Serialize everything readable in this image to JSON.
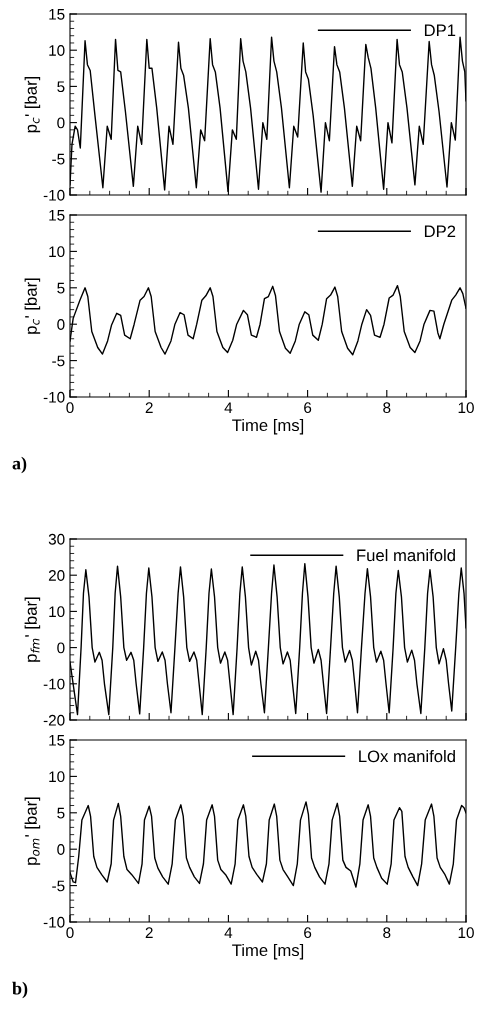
{
  "chart_data": [
    {
      "type": "line",
      "ylabel": "p$_{c}$' [bar]",
      "xlim": [
        0,
        10
      ],
      "xticks": [
        0,
        2,
        4,
        6,
        8,
        10
      ],
      "ylim": [
        -10,
        15
      ],
      "yticks": [
        -10,
        -5,
        0,
        5,
        10,
        15
      ],
      "tick_labels": "y",
      "legend": "top right",
      "grid": false,
      "series": [
        {
          "name": "DP1",
          "color": "#000000",
          "x": [
            0,
            0.05,
            0.13,
            0.19,
            0.26,
            0.38,
            0.44,
            0.51,
            0.63,
            0.83,
            0.94,
            1.04,
            1.15,
            1.21,
            1.28,
            1.4,
            1.6,
            1.71,
            1.81,
            1.94,
            2.0,
            2.07,
            2.19,
            2.39,
            2.5,
            2.6,
            2.74,
            2.8,
            2.87,
            2.99,
            3.19,
            3.3,
            3.4,
            3.54,
            3.6,
            3.67,
            3.79,
            3.99,
            4.1,
            4.2,
            4.31,
            4.37,
            4.44,
            4.56,
            4.76,
            4.87,
            4.97,
            5.09,
            5.15,
            5.22,
            5.34,
            5.54,
            5.65,
            5.75,
            5.89,
            5.95,
            6.02,
            6.14,
            6.34,
            6.45,
            6.55,
            6.68,
            6.74,
            6.81,
            6.93,
            7.13,
            7.24,
            7.34,
            7.47,
            7.53,
            7.6,
            7.72,
            7.92,
            8.03,
            8.13,
            8.26,
            8.32,
            8.39,
            8.51,
            8.71,
            8.82,
            8.92,
            9.07,
            9.13,
            9.2,
            9.32,
            9.52,
            9.63,
            9.73,
            9.85,
            9.91,
            9.97,
            10
          ],
          "values": [
            -8.6,
            -3,
            -0.5,
            -1,
            -3.5,
            11.3,
            8,
            7.2,
            1,
            -9,
            -0.5,
            -2.3,
            11.5,
            7.2,
            7,
            1.5,
            -8.8,
            -0.5,
            -3,
            11.5,
            7.5,
            7.5,
            2,
            -9.3,
            -0.5,
            -3,
            11.1,
            7.5,
            6.5,
            2,
            -9,
            -1,
            -2.5,
            11.6,
            8,
            7,
            2,
            -9.5,
            -1,
            -2.3,
            11.6,
            8.5,
            7,
            2,
            -9.2,
            0,
            -2.3,
            11.8,
            8.5,
            7,
            2,
            -9,
            -0.5,
            -2,
            11,
            7,
            6,
            1,
            -9.6,
            0,
            -2.5,
            10.5,
            8,
            7,
            2,
            -8.8,
            -0.5,
            -2.5,
            10.8,
            9,
            7.5,
            2,
            -9.2,
            0,
            -2.8,
            11.5,
            8,
            7,
            2,
            -8.6,
            -0.5,
            -3,
            11.2,
            8,
            6.5,
            1.5,
            -8.9,
            0,
            -2.4,
            11.8,
            8.5,
            7,
            3
          ]
        }
      ]
    },
    {
      "type": "line",
      "xlabel": "Time [ms]",
      "ylabel": "p$_{c}$' [bar]",
      "xlim": [
        0,
        10
      ],
      "xticks": [
        0,
        2,
        4,
        6,
        8,
        10
      ],
      "ylim": [
        -10,
        15
      ],
      "yticks": [
        -10,
        -5,
        0,
        5,
        10,
        15
      ],
      "legend": "top right",
      "grid": false,
      "annotations": [
        "a)"
      ],
      "series": [
        {
          "name": "DP2",
          "color": "#000000",
          "x": [
            0,
            0.08,
            0.25,
            0.38,
            0.45,
            0.55,
            0.7,
            0.82,
            0.95,
            1.05,
            1.18,
            1.28,
            1.38,
            1.52,
            1.62,
            1.77,
            1.87,
            1.98,
            2.05,
            2.15,
            2.3,
            2.4,
            2.55,
            2.65,
            2.78,
            2.88,
            2.98,
            3.11,
            3.2,
            3.33,
            3.43,
            3.54,
            3.61,
            3.71,
            3.86,
            3.98,
            4.11,
            4.21,
            4.38,
            4.48,
            4.58,
            4.71,
            4.8,
            4.91,
            5.01,
            5.12,
            5.19,
            5.29,
            5.44,
            5.56,
            5.69,
            5.79,
            5.93,
            6.03,
            6.13,
            6.27,
            6.37,
            6.48,
            6.58,
            6.69,
            6.76,
            6.86,
            7.01,
            7.14,
            7.27,
            7.37,
            7.49,
            7.59,
            7.69,
            7.83,
            7.93,
            8.06,
            8.16,
            8.27,
            8.34,
            8.44,
            8.59,
            8.71,
            8.84,
            8.94,
            9.09,
            9.19,
            9.29,
            9.34,
            9.44,
            9.64,
            9.74,
            9.85,
            9.92,
            10
          ],
          "values": [
            -2.3,
            0.8,
            3.3,
            5,
            3.8,
            -1,
            -3.2,
            -4.1,
            -2.3,
            -0.1,
            1.5,
            1.2,
            -1.5,
            -2,
            0,
            3.3,
            3.8,
            5,
            3.8,
            -1,
            -3.2,
            -4.1,
            -2.3,
            0,
            1.6,
            1.3,
            -1.5,
            -2,
            0,
            3.3,
            3.9,
            5,
            3.8,
            -1,
            -3.2,
            -3.9,
            -2.2,
            0,
            1.9,
            1.3,
            -1.5,
            -1.8,
            0,
            3.5,
            3.8,
            5.2,
            3.9,
            -1,
            -3.3,
            -4,
            -2.3,
            0,
            1.7,
            1.3,
            -1.5,
            -2.2,
            0,
            3.5,
            4,
            5.1,
            3.8,
            -1,
            -3.3,
            -4.2,
            -2.3,
            0,
            2,
            1.2,
            -1.5,
            -1.8,
            0,
            3.6,
            4,
            5.3,
            3.8,
            -1,
            -3.2,
            -3.9,
            -2.3,
            0,
            1.9,
            1.8,
            -1.2,
            -2,
            0,
            3.3,
            4,
            5,
            4.2,
            2.2
          ]
        }
      ]
    },
    {
      "type": "line",
      "ylabel": "p$_{fm}$' [bar]",
      "xlim": [
        0,
        10
      ],
      "xticks": [
        0,
        2,
        4,
        6,
        8,
        10
      ],
      "ylim": [
        -20,
        30
      ],
      "yticks": [
        -20,
        -10,
        0,
        10,
        20,
        30
      ],
      "tick_labels": "y",
      "legend": "top right",
      "grid": false,
      "series": [
        {
          "name": "Fuel manifold",
          "color": "#000000",
          "x": [
            0,
            0.19,
            0.28,
            0.34,
            0.4,
            0.48,
            0.56,
            0.63,
            0.74,
            0.81,
            0.87,
            0.98,
            1.08,
            1.14,
            1.2,
            1.28,
            1.36,
            1.43,
            1.54,
            1.61,
            1.67,
            1.76,
            1.86,
            1.93,
            1.99,
            2.07,
            2.15,
            2.22,
            2.33,
            2.4,
            2.46,
            2.55,
            2.65,
            2.73,
            2.79,
            2.87,
            2.95,
            3.02,
            3.13,
            3.2,
            3.26,
            3.34,
            3.44,
            3.51,
            3.57,
            3.65,
            3.73,
            3.8,
            3.91,
            3.98,
            4.04,
            4.12,
            4.22,
            4.29,
            4.35,
            4.43,
            4.51,
            4.58,
            4.69,
            4.76,
            4.82,
            4.91,
            5.01,
            5.09,
            5.15,
            5.23,
            5.31,
            5.38,
            5.49,
            5.56,
            5.62,
            5.7,
            5.8,
            5.87,
            5.93,
            6.01,
            6.09,
            6.16,
            6.27,
            6.34,
            6.4,
            6.48,
            6.58,
            6.66,
            6.72,
            6.8,
            6.88,
            6.95,
            7.06,
            7.13,
            7.19,
            7.26,
            7.36,
            7.45,
            7.51,
            7.59,
            7.67,
            7.74,
            7.85,
            7.92,
            7.98,
            8.06,
            8.16,
            8.23,
            8.29,
            8.37,
            8.45,
            8.52,
            8.63,
            8.7,
            8.76,
            8.86,
            8.96,
            9.03,
            9.09,
            9.17,
            9.25,
            9.32,
            9.43,
            9.5,
            9.56,
            9.64,
            9.74,
            9.82,
            9.88,
            9.95,
            10
          ],
          "values": [
            -4,
            -18.5,
            0,
            15,
            21.5,
            14,
            0,
            -4,
            -1.3,
            -3.5,
            -10,
            -18.5,
            0,
            15,
            22.5,
            14,
            0,
            -3.5,
            -1.3,
            -3.5,
            -10,
            -18.3,
            0,
            15,
            22,
            14,
            0,
            -3.8,
            -1.2,
            -3.5,
            -10,
            -18,
            0,
            15,
            22.3,
            14,
            0,
            -3.8,
            -1.2,
            -3.5,
            -10,
            -18.5,
            0,
            15,
            21.7,
            14,
            0,
            -4.3,
            -1.2,
            -3.5,
            -10,
            -18.5,
            0,
            15,
            22.3,
            14,
            0,
            -4.8,
            -1,
            -3.5,
            -10,
            -18,
            0,
            15,
            22.8,
            14,
            0,
            -4.5,
            -1.2,
            -3.5,
            -10,
            -18.2,
            0,
            15,
            23.2,
            14,
            0,
            -4.3,
            -0.5,
            -3.5,
            -10,
            -18.2,
            0,
            15,
            22.5,
            14,
            0,
            -4,
            -0.8,
            -3.5,
            -10,
            -18,
            0,
            15,
            21.8,
            14,
            0,
            -4,
            -1,
            -3.5,
            -10,
            -18,
            0,
            15,
            21.3,
            14,
            0,
            -4,
            -0.7,
            -3.5,
            -10,
            -18.2,
            0,
            15,
            21.5,
            14,
            0,
            -4.5,
            -0.3,
            -3.5,
            -10,
            -17.5,
            0,
            15,
            22,
            15,
            5.5
          ]
        }
      ]
    },
    {
      "type": "line",
      "xlabel": "Time [ms]",
      "ylabel": "p$_{om}$' [bar]",
      "xlim": [
        0,
        10
      ],
      "xticks": [
        0,
        2,
        4,
        6,
        8,
        10
      ],
      "ylim": [
        -10,
        15
      ],
      "yticks": [
        -10,
        -5,
        0,
        5,
        10,
        15
      ],
      "legend": "top right",
      "grid": false,
      "annotations": [
        "b)"
      ],
      "series": [
        {
          "name": "LOx manifold",
          "color": "#000000",
          "x": [
            0,
            0.08,
            0.14,
            0.22,
            0.3,
            0.46,
            0.52,
            0.6,
            0.68,
            0.8,
            0.94,
            1.04,
            1.1,
            1.22,
            1.28,
            1.36,
            1.44,
            1.56,
            1.73,
            1.82,
            1.88,
            2.0,
            2.06,
            2.14,
            2.22,
            2.34,
            2.48,
            2.58,
            2.66,
            2.8,
            2.86,
            2.94,
            3.02,
            3.14,
            3.27,
            3.37,
            3.45,
            3.59,
            3.65,
            3.73,
            3.81,
            3.93,
            4.07,
            4.17,
            4.24,
            4.38,
            4.44,
            4.52,
            4.6,
            4.72,
            4.86,
            4.96,
            5.03,
            5.16,
            5.22,
            5.3,
            5.38,
            5.5,
            5.64,
            5.74,
            5.82,
            5.96,
            6.02,
            6.1,
            6.18,
            6.3,
            6.44,
            6.54,
            6.62,
            6.75,
            6.81,
            6.89,
            6.97,
            7.09,
            7.22,
            7.32,
            7.4,
            7.53,
            7.59,
            7.67,
            7.75,
            7.87,
            8.01,
            8.11,
            8.18,
            8.32,
            8.38,
            8.46,
            8.54,
            8.66,
            8.78,
            8.88,
            8.97,
            9.13,
            9.19,
            9.27,
            9.35,
            9.47,
            9.58,
            9.68,
            9.76,
            9.89,
            9.95,
            10
          ],
          "values": [
            -3.2,
            -4.5,
            -4.6,
            -1,
            4,
            6,
            4.5,
            -1,
            -2.5,
            -3.5,
            -4.5,
            -2,
            4,
            6.3,
            4.5,
            -1,
            -2.8,
            -3.5,
            -4.7,
            -2,
            4,
            5.9,
            4.5,
            -1.2,
            -2.6,
            -3.8,
            -4.8,
            -2,
            4,
            6.1,
            4.5,
            -1.2,
            -2.5,
            -3.8,
            -4.7,
            -2,
            4,
            6.1,
            4.5,
            -1.5,
            -2.8,
            -3.5,
            -4.8,
            -2,
            4,
            6.1,
            4.5,
            -1,
            -2.5,
            -3.5,
            -4.5,
            -2,
            4,
            6.2,
            4.5,
            -1.5,
            -2.8,
            -3.8,
            -5,
            -2,
            4,
            6.5,
            4.8,
            -1.2,
            -2.5,
            -3.8,
            -4.8,
            -2,
            4,
            6.3,
            4.5,
            -1.5,
            -2.5,
            -3,
            -5.2,
            -2,
            4,
            6.1,
            4.5,
            -1.2,
            -2.5,
            -4,
            -4.8,
            -2,
            4,
            5.7,
            5.2,
            -1,
            -2.5,
            -3.8,
            -5,
            -2,
            4,
            6.2,
            4.5,
            -1.2,
            -2.5,
            -3.5,
            -4.8,
            -2,
            4,
            6,
            5.7,
            5
          ]
        }
      ]
    }
  ]
}
